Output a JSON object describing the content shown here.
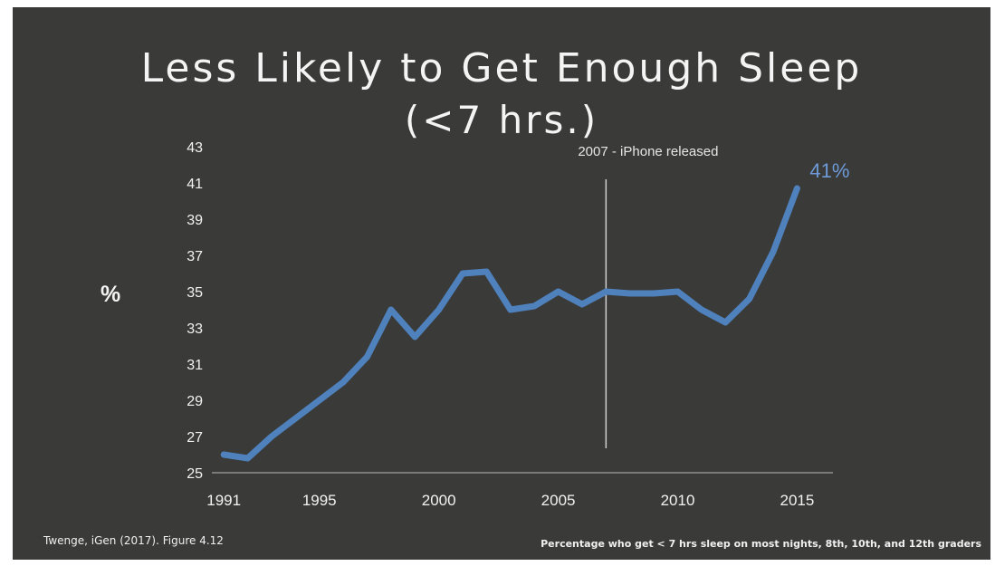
{
  "slide": {
    "title_line1": "Less Likely to Get Enough Sleep",
    "title_line2": "(<7 hrs.)",
    "source": "Twenge, iGen (2017). Figure 4.12",
    "caption": "Percentage who get < 7 hrs sleep on most nights, 8th, 10th, and 12th graders"
  },
  "chart_data": {
    "type": "line",
    "ylabel": "%",
    "ylim": [
      25,
      43
    ],
    "xlim": [
      1990.5,
      2016.5
    ],
    "y_ticks": [
      25,
      27,
      29,
      31,
      33,
      35,
      37,
      39,
      41,
      43
    ],
    "x_ticks": [
      1991,
      1995,
      2000,
      2005,
      2010,
      2015
    ],
    "grid": false,
    "series": [
      {
        "color": "#4f81bd",
        "x": [
          1991,
          1992,
          1993,
          1994,
          1995,
          1996,
          1997,
          1998,
          1999,
          2000,
          2001,
          2002,
          2003,
          2004,
          2005,
          2006,
          2007,
          2008,
          2009,
          2010,
          2011,
          2012,
          2013,
          2014,
          2015
        ],
        "y": [
          26.0,
          25.8,
          27.0,
          28.0,
          29.0,
          30.0,
          31.4,
          34.0,
          32.5,
          34.0,
          36.0,
          36.1,
          34.0,
          34.2,
          35.0,
          34.3,
          35.0,
          34.9,
          34.9,
          35.0,
          34.0,
          33.3,
          34.6,
          37.2,
          40.7
        ]
      }
    ],
    "annotations": [
      {
        "text": "2007 - iPhone released",
        "x": 2007
      }
    ],
    "end_label": "41%"
  }
}
